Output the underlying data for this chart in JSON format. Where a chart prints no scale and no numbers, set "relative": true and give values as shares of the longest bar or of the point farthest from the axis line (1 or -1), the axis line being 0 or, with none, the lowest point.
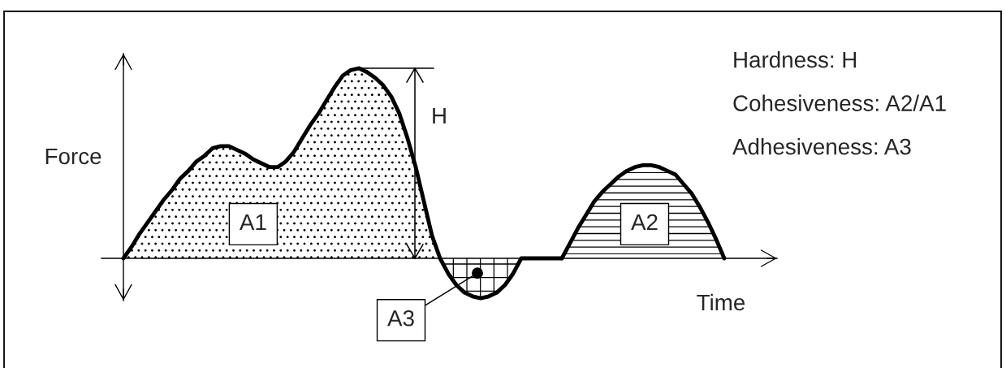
{
  "chart_data": {
    "type": "area",
    "relative": true,
    "xlabel": "Time",
    "ylabel": "Force",
    "categories": [
      null,
      null,
      null,
      null,
      null,
      null,
      null,
      null,
      null,
      null,
      null,
      null,
      null,
      null,
      null,
      null,
      null,
      null,
      null,
      null,
      null,
      null,
      null,
      null,
      null,
      null,
      null,
      null,
      null,
      null,
      null,
      null,
      null,
      null,
      null,
      null,
      null,
      null,
      null,
      null,
      null,
      null,
      null,
      null,
      null,
      null,
      null,
      null,
      null,
      null,
      null,
      null,
      null,
      null,
      null,
      null,
      null,
      null,
      null,
      null,
      null,
      null,
      null,
      null,
      null,
      null,
      null,
      null,
      null,
      null,
      null,
      null,
      null,
      null,
      null
    ],
    "series": [
      {
        "name": "A1",
        "color": "#000000",
        "values": [
          0,
          0.06,
          0.13,
          0.19,
          0.25,
          0.31,
          0.36,
          0.42,
          0.46,
          0.51,
          0.54,
          0.58,
          0.59,
          0.59,
          0.57,
          0.55,
          0.52,
          0.5,
          0.48,
          0.48,
          0.51,
          0.56,
          0.63,
          0.7,
          0.76,
          0.83,
          0.9,
          0.96,
          0.99,
          1.0,
          0.98,
          0.95,
          0.91,
          0.85,
          0.76,
          0.63,
          0.48,
          0.3,
          0.12,
          0,
          null,
          null,
          null,
          null,
          null,
          null,
          null,
          null,
          null,
          null,
          null,
          null,
          null,
          null,
          null,
          null,
          null,
          null,
          null,
          null,
          null,
          null,
          null,
          null,
          null,
          null,
          null,
          null,
          null,
          null,
          null,
          null,
          null,
          null,
          null
        ]
      },
      {
        "name": "A2",
        "color": "#000000",
        "values": [
          null,
          null,
          null,
          null,
          null,
          null,
          null,
          null,
          null,
          null,
          null,
          null,
          null,
          null,
          null,
          null,
          null,
          null,
          null,
          null,
          null,
          null,
          null,
          null,
          null,
          null,
          null,
          null,
          null,
          null,
          null,
          null,
          null,
          null,
          null,
          null,
          null,
          null,
          null,
          null,
          null,
          null,
          null,
          null,
          null,
          null,
          null,
          null,
          null,
          null,
          null,
          null,
          null,
          null,
          0,
          0.08,
          0.16,
          0.23,
          0.3,
          0.35,
          0.39,
          0.43,
          0.46,
          0.48,
          0.49,
          0.49,
          0.48,
          0.46,
          0.44,
          0.39,
          0.34,
          0.27,
          0.19,
          0.1,
          0
        ]
      },
      {
        "name": "A3",
        "color": "#000000",
        "values": [
          null,
          null,
          null,
          null,
          null,
          null,
          null,
          null,
          null,
          null,
          null,
          null,
          null,
          null,
          null,
          null,
          null,
          null,
          null,
          null,
          null,
          null,
          null,
          null,
          null,
          null,
          null,
          null,
          null,
          null,
          null,
          null,
          null,
          null,
          null,
          null,
          null,
          null,
          null,
          0,
          -0.08,
          -0.14,
          -0.18,
          -0.2,
          -0.21,
          -0.2,
          -0.18,
          -0.14,
          -0.08,
          0,
          0,
          0,
          0,
          0,
          0,
          null,
          null,
          null,
          null,
          null,
          null,
          null,
          null,
          null,
          null,
          null,
          null,
          null,
          null,
          null,
          null,
          null,
          null,
          null,
          null
        ]
      }
    ],
    "annotations": [
      "H",
      "Hardness: H",
      "Cohesiveness: A2/A1",
      "Adhesiveness: A3"
    ]
  }
}
